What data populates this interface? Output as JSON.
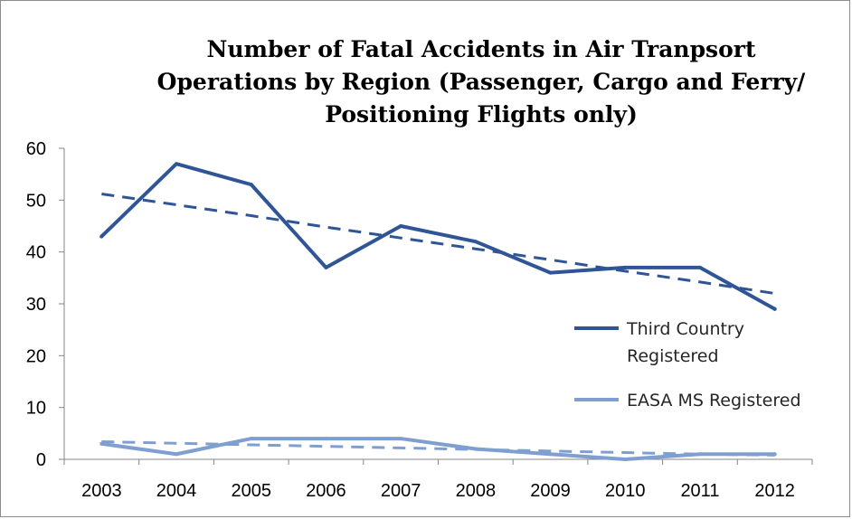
{
  "chart_data": {
    "type": "line",
    "title_lines": [
      "Number of Fatal Accidents in Air Tranpsort",
      "Operations by Region (Passenger, Cargo and Ferry/",
      "Positioning Flights only)"
    ],
    "categories": [
      "2003",
      "2004",
      "2005",
      "2006",
      "2007",
      "2008",
      "2009",
      "2010",
      "2011",
      "2012"
    ],
    "ylim": [
      0,
      60
    ],
    "yticks": [
      0,
      10,
      20,
      30,
      40,
      50,
      60
    ],
    "ytick_labels": [
      "0",
      "10",
      "20",
      "30",
      "40",
      "50",
      "60"
    ],
    "xlabel": "",
    "ylabel": "",
    "grid": false,
    "legend_position": "right",
    "series": [
      {
        "name": "Third Country Registered",
        "legend_lines": [
          "Third Country",
          "Registered"
        ],
        "color": "#2f5597",
        "values": [
          43,
          57,
          53,
          37,
          45,
          42,
          36,
          37,
          37,
          29
        ],
        "trendline": [
          51.2,
          49.1,
          47.0,
          44.8,
          42.7,
          40.6,
          38.5,
          36.3,
          34.2,
          32.0
        ]
      },
      {
        "name": "EASA MS Registered",
        "legend_lines": [
          "EASA MS Registered"
        ],
        "color": "#7f9fd1",
        "values": [
          3,
          1,
          4,
          4,
          4,
          2,
          1,
          0,
          1,
          1
        ],
        "trendline": [
          3.4,
          3.1,
          2.8,
          2.5,
          2.2,
          1.9,
          1.6,
          1.3,
          1.0,
          0.8
        ]
      }
    ]
  }
}
